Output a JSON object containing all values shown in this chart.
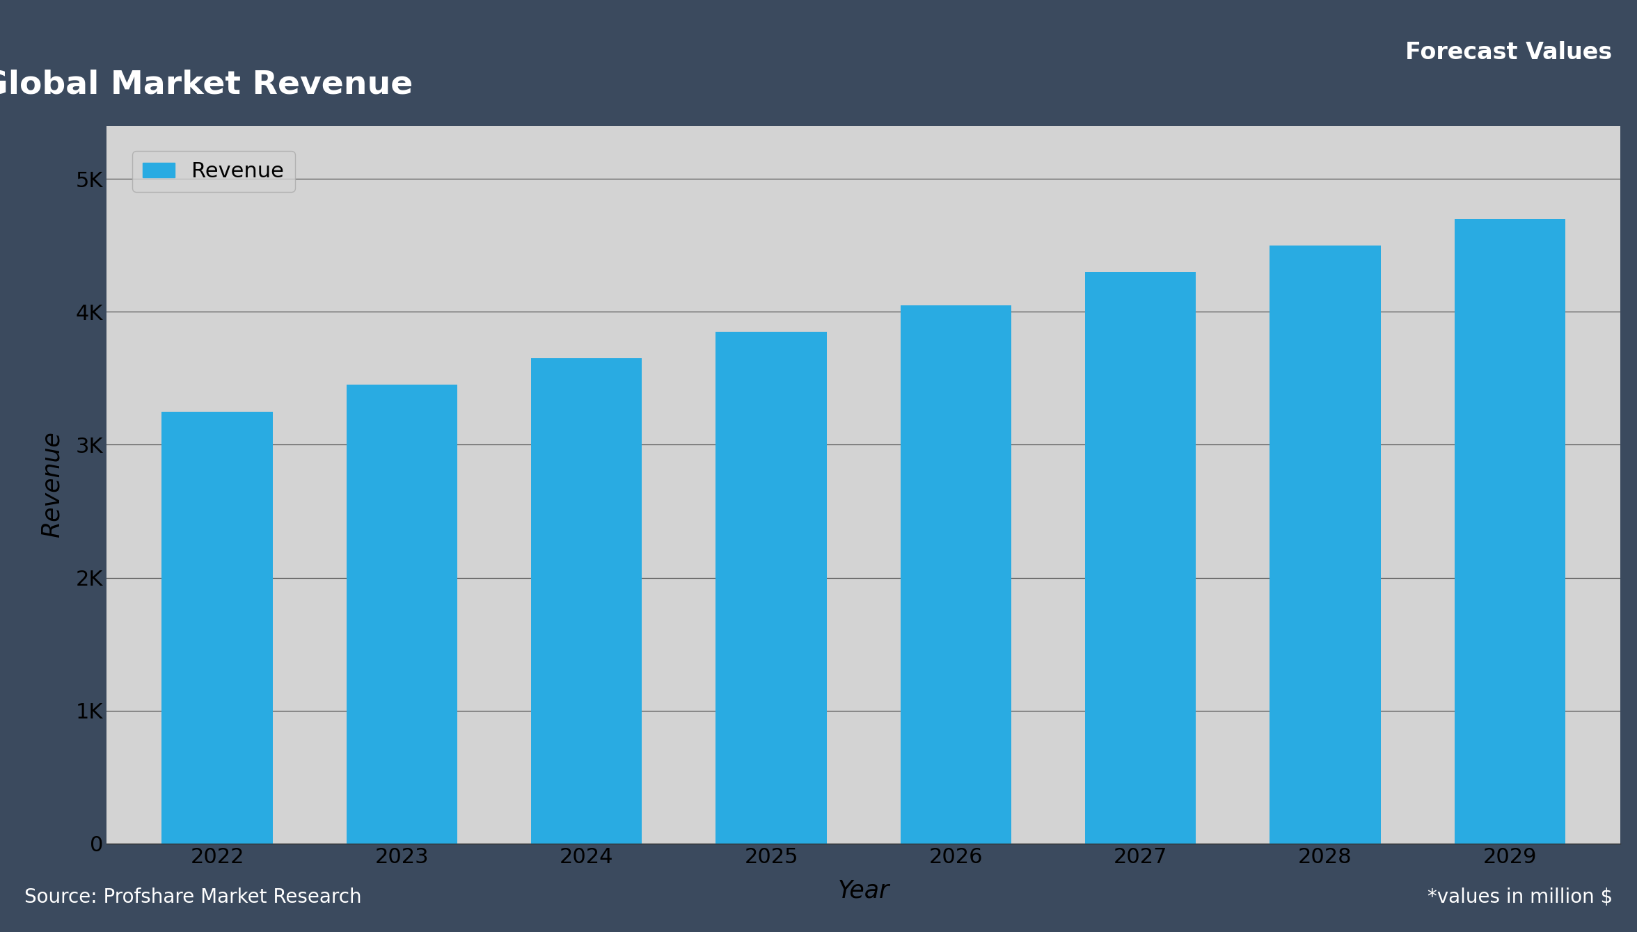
{
  "years": [
    2022,
    2023,
    2024,
    2025,
    2026,
    2027,
    2028,
    2029
  ],
  "values": [
    3250,
    3450,
    3650,
    3850,
    4050,
    4300,
    4500,
    4700
  ],
  "bar_color": "#29ABE2",
  "title": "Global Market Revenue",
  "title_bg_color": "#5B7DB1",
  "title_text_color": "#FFFFFF",
  "xlabel": "Year",
  "ylabel": "Revenue",
  "legend_label": "Revenue",
  "ytick_labels": [
    "0",
    "1K",
    "2K",
    "3K",
    "4K",
    "5K"
  ],
  "ytick_values": [
    0,
    1000,
    2000,
    3000,
    4000,
    5000
  ],
  "ylim": [
    0,
    5400
  ],
  "plot_bg_color": "#D3D3D3",
  "outer_bg_color": "#3B4A5E",
  "header_bg_color": "#3B4A5E",
  "source_text": "Source: Profshare Market Research",
  "forecast_text": "Forecast Values",
  "footnote_text": "*values in million $",
  "grid_color": "#555555",
  "axis_label_color": "#000000",
  "tick_label_color": "#000000",
  "bar_width": 0.6
}
